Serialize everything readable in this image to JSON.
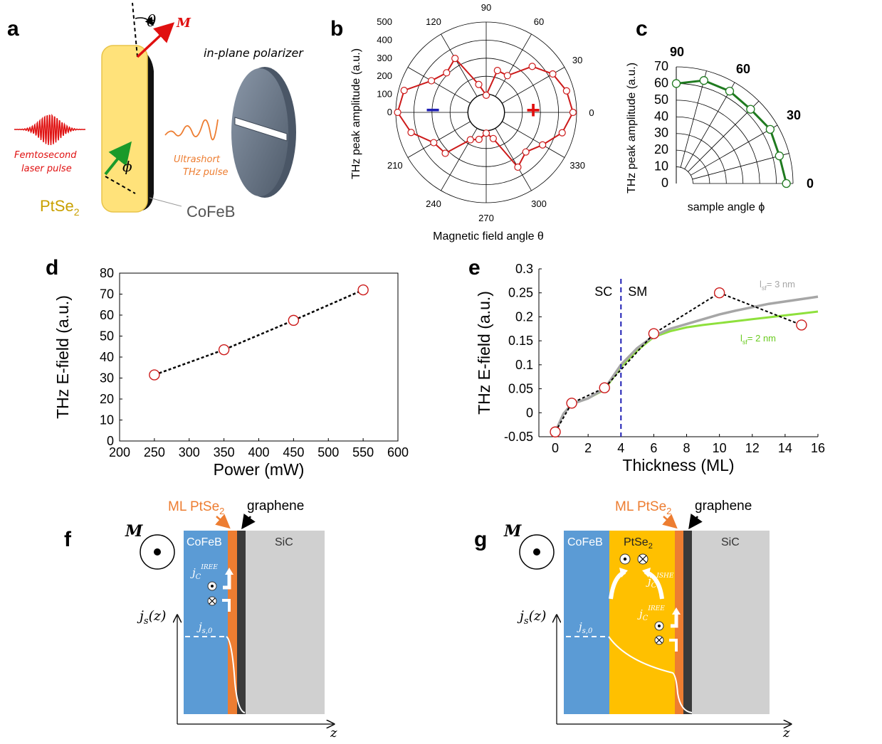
{
  "colors": {
    "red": "#cc1a1a",
    "green": "#1f7a1f",
    "gold": "#ffc000",
    "blue_layer": "#5b9bd5",
    "orange_layer": "#ed7d31",
    "graphene": "#3a3a3a",
    "sic": "#d0d0d0",
    "sc_line": "#1f1fb4",
    "lsf3": "#a6a6a6",
    "lsf2": "#8ee03c"
  },
  "panels": {
    "a": {
      "label": "a",
      "theta": "θ",
      "M": "M",
      "polarizer": "in-plane polarizer",
      "laser_line1": "Femtosecond",
      "laser_line2": "laser pulse",
      "thz_line1": "Ultrashort",
      "thz_line2": "THz pulse",
      "phi": "ϕ",
      "ptse2": "PtSe",
      "ptse2_sub": "2",
      "cofeb": "CoFeB"
    },
    "b": {
      "label": "b",
      "ylabel": "THz peak amplitude (a.u.)",
      "xlabel": "Magnetic field angle θ",
      "minus": "−",
      "plus": "+"
    },
    "c": {
      "label": "c",
      "ylabel": "THz peak amplitude (a.u.)",
      "xlabel": "sample angle ϕ"
    },
    "d": {
      "label": "d"
    },
    "e": {
      "label": "e",
      "sc": "SC",
      "sm": "SM",
      "lsf3": "l",
      "lsf3_sub": "sf",
      "lsf3_val": "= 3 nm",
      "lsf2": "l",
      "lsf2_sub": "sf",
      "lsf2_val": "= 2 nm"
    },
    "f": {
      "label": "f",
      "M": "M",
      "top_ml": "ML PtSe",
      "top_ml_sub": "2",
      "top_graphene": "graphene",
      "cofeb": "CoFeB",
      "sic": "SiC",
      "jc": "j",
      "jc_sub": "C",
      "jc_sup": "IREE",
      "js": "j",
      "js_sub": "s",
      "js_arg": "(z)",
      "js0": "j",
      "js0_sub": "s,0",
      "z": "z"
    },
    "g": {
      "label": "g",
      "M": "M",
      "top_ml": "ML PtSe",
      "top_ml_sub": "2",
      "top_graphene": "graphene",
      "cofeb": "CoFeB",
      "ptse2": "PtSe",
      "ptse2_sub": "2",
      "sic": "SiC",
      "jc_ishe": "j",
      "jc_ishe_sub": "C",
      "jc_ishe_sup": "ISHE",
      "jc_iree": "j",
      "jc_iree_sub": "C",
      "jc_iree_sup": "IREE",
      "js": "j",
      "js_sub": "s",
      "js_arg": "(z)",
      "js0": "j",
      "js0_sub": "s,0",
      "z": "z"
    }
  },
  "chart_data": [
    {
      "id": "b",
      "type": "scatter",
      "subtype": "polar",
      "title": "",
      "xlabel": "Magnetic field angle θ",
      "ylabel": "THz peak amplitude (a.u.)",
      "radial_ticks": [
        "0",
        "100",
        "200",
        "300",
        "400",
        "500"
      ],
      "radial_range": [
        0,
        500
      ],
      "angle_ticks": [
        "0",
        "30",
        "60",
        "90",
        "120",
        "150",
        "180",
        "210",
        "240",
        "270",
        "300",
        "330"
      ],
      "angle_tick_labels_shown": [
        "0",
        "30",
        "60",
        "90",
        "120",
        "210",
        "240",
        "270",
        "300",
        "330"
      ],
      "series": [
        {
          "name": "THz amplitude",
          "angles": [
            0,
            15,
            30,
            45,
            60,
            75,
            90,
            105,
            120,
            135,
            150,
            165,
            180,
            195,
            210,
            225,
            240,
            255,
            270,
            285,
            300,
            315,
            330,
            345
          ],
          "values": [
            480,
            460,
            425,
            360,
            235,
            240,
            95,
            160,
            345,
            310,
            350,
            470,
            490,
            430,
            335,
            320,
            175,
            155,
            115,
            150,
            350,
            310,
            360,
            435
          ]
        }
      ]
    },
    {
      "id": "c",
      "type": "scatter",
      "subtype": "polar-quadrant",
      "title": "",
      "xlabel": "sample angle ϕ",
      "ylabel": "THz peak amplitude (a.u.)",
      "radial_ticks": [
        "0",
        "10",
        "20",
        "30",
        "40",
        "50",
        "60",
        "70"
      ],
      "radial_range": [
        0,
        70
      ],
      "angle_tick_labels": [
        "0",
        "30",
        "60",
        "90"
      ],
      "series": [
        {
          "name": "THz amplitude",
          "angles": [
            0,
            15,
            30,
            45,
            60,
            75,
            90
          ],
          "values": [
            66,
            64,
            65,
            63,
            64,
            64,
            60
          ]
        }
      ]
    },
    {
      "id": "d",
      "type": "scatter",
      "title": "",
      "xlabel": "Power (mW)",
      "ylabel": "THz E-field (a.u.)",
      "xlim": [
        200,
        600
      ],
      "ylim": [
        0,
        80
      ],
      "xticks": [
        "200",
        "250",
        "300",
        "350",
        "400",
        "450",
        "500",
        "550",
        "600"
      ],
      "yticks": [
        "0",
        "10",
        "20",
        "30",
        "40",
        "50",
        "60",
        "70",
        "80"
      ],
      "series": [
        {
          "name": "data",
          "x": [
            250,
            350,
            450,
            550
          ],
          "y": [
            31.5,
            43.5,
            57.5,
            72
          ]
        }
      ]
    },
    {
      "id": "e",
      "type": "line",
      "title": "",
      "xlabel": "Thickness (ML)",
      "ylabel": "THz E-field (a.u.)",
      "xlim": [
        -1,
        16
      ],
      "ylim": [
        -0.05,
        0.3
      ],
      "xticks": [
        "0",
        "2",
        "4",
        "6",
        "8",
        "10",
        "12",
        "14",
        "16"
      ],
      "yticks": [
        "-0.05",
        "0",
        "0.05",
        "0.1",
        "0.15",
        "0.2",
        "0.25",
        "0.3"
      ],
      "annotations": [
        "SC",
        "SM"
      ],
      "series": [
        {
          "name": "data",
          "x": [
            0,
            1,
            3,
            6,
            10,
            15
          ],
          "y": [
            -0.04,
            0.02,
            0.052,
            0.165,
            0.25,
            0.183
          ]
        },
        {
          "name": "lsf = 3 nm",
          "x": [
            0,
            0.5,
            1,
            2,
            3,
            3.5,
            4,
            5,
            6,
            7,
            8,
            9,
            10,
            11,
            12,
            13,
            14,
            15,
            16
          ],
          "y": [
            -0.04,
            -0.002,
            0.018,
            0.03,
            0.05,
            0.075,
            0.1,
            0.135,
            0.16,
            0.175,
            0.185,
            0.195,
            0.205,
            0.213,
            0.22,
            0.227,
            0.232,
            0.237,
            0.242
          ]
        },
        {
          "name": "lsf = 2 nm",
          "x": [
            0.5,
            1,
            2,
            3,
            3.5,
            4,
            5,
            6,
            7,
            8,
            9,
            10,
            11,
            12,
            13,
            14,
            15,
            16
          ],
          "y": [
            -0.002,
            0.018,
            0.03,
            0.048,
            0.072,
            0.096,
            0.13,
            0.158,
            0.17,
            0.178,
            0.183,
            0.187,
            0.191,
            0.195,
            0.199,
            0.203,
            0.207,
            0.211
          ]
        }
      ]
    }
  ]
}
